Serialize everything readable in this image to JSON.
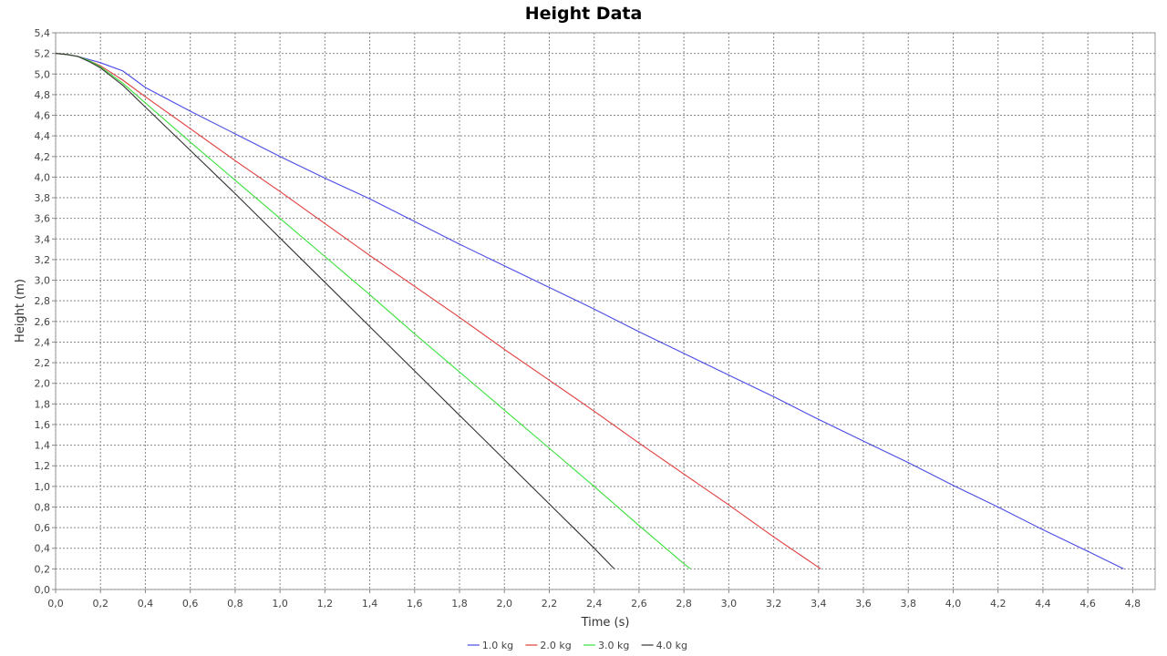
{
  "chart_data": {
    "type": "line",
    "title": "Height Data",
    "xlabel": "Time (s)",
    "ylabel": "Height (m)",
    "xlim": [
      0.0,
      4.9
    ],
    "ylim": [
      0.0,
      5.4
    ],
    "x_ticks": [
      "0,0",
      "0,2",
      "0,4",
      "0,6",
      "0,8",
      "1,0",
      "1,2",
      "1,4",
      "1,6",
      "1,8",
      "2,0",
      "2,2",
      "2,4",
      "2,6",
      "2,8",
      "3,0",
      "3,2",
      "3,4",
      "3,6",
      "3,8",
      "4,0",
      "4,2",
      "4,4",
      "4,6",
      "4,8"
    ],
    "y_ticks": [
      "0,0",
      "0,2",
      "0,4",
      "0,6",
      "0,8",
      "1,0",
      "1,2",
      "1,4",
      "1,6",
      "1,8",
      "2,0",
      "2,2",
      "2,4",
      "2,6",
      "2,8",
      "3,0",
      "3,2",
      "3,4",
      "3,6",
      "3,8",
      "4,0",
      "4,2",
      "4,4",
      "4,6",
      "4,8",
      "5,0",
      "5,2",
      "5,4"
    ],
    "grid": true,
    "legend_position": "bottom",
    "series": [
      {
        "name": "1.0 kg",
        "color": "#4a4ae6",
        "points": [
          [
            0.0,
            5.2
          ],
          [
            0.05,
            5.19
          ],
          [
            0.1,
            5.17
          ],
          [
            0.15,
            5.14
          ],
          [
            0.2,
            5.11
          ],
          [
            0.3,
            5.03
          ],
          [
            0.4,
            4.87
          ],
          [
            0.6,
            4.64
          ],
          [
            0.8,
            4.42
          ],
          [
            1.0,
            4.2
          ],
          [
            1.2,
            3.99
          ],
          [
            1.4,
            3.79
          ],
          [
            1.6,
            3.57
          ],
          [
            1.8,
            3.35
          ],
          [
            2.0,
            3.14
          ],
          [
            2.2,
            2.93
          ],
          [
            2.4,
            2.72
          ],
          [
            2.6,
            2.5
          ],
          [
            2.8,
            2.29
          ],
          [
            3.0,
            2.08
          ],
          [
            3.2,
            1.87
          ],
          [
            3.4,
            1.65
          ],
          [
            3.6,
            1.44
          ],
          [
            3.8,
            1.23
          ],
          [
            4.0,
            1.01
          ],
          [
            4.2,
            0.8
          ],
          [
            4.4,
            0.58
          ],
          [
            4.6,
            0.37
          ],
          [
            4.76,
            0.2
          ]
        ]
      },
      {
        "name": "2.0 kg",
        "color": "#e03c3c",
        "points": [
          [
            0.0,
            5.2
          ],
          [
            0.05,
            5.19
          ],
          [
            0.1,
            5.17
          ],
          [
            0.15,
            5.13
          ],
          [
            0.2,
            5.08
          ],
          [
            0.3,
            4.94
          ],
          [
            0.4,
            4.78
          ],
          [
            0.6,
            4.47
          ],
          [
            0.8,
            4.16
          ],
          [
            1.0,
            3.86
          ],
          [
            1.2,
            3.55
          ],
          [
            1.4,
            3.24
          ],
          [
            1.6,
            2.94
          ],
          [
            1.8,
            2.64
          ],
          [
            2.0,
            2.33
          ],
          [
            2.2,
            2.03
          ],
          [
            2.4,
            1.73
          ],
          [
            2.6,
            1.42
          ],
          [
            2.8,
            1.12
          ],
          [
            3.0,
            0.82
          ],
          [
            3.2,
            0.51
          ],
          [
            3.41,
            0.2
          ]
        ]
      },
      {
        "name": "3.0 kg",
        "color": "#3ce03c",
        "points": [
          [
            0.0,
            5.2
          ],
          [
            0.05,
            5.19
          ],
          [
            0.1,
            5.17
          ],
          [
            0.15,
            5.13
          ],
          [
            0.2,
            5.07
          ],
          [
            0.3,
            4.91
          ],
          [
            0.4,
            4.72
          ],
          [
            0.6,
            4.34
          ],
          [
            0.8,
            3.97
          ],
          [
            1.0,
            3.6
          ],
          [
            1.2,
            3.23
          ],
          [
            1.4,
            2.86
          ],
          [
            1.6,
            2.48
          ],
          [
            1.8,
            2.11
          ],
          [
            2.0,
            1.74
          ],
          [
            2.2,
            1.37
          ],
          [
            2.4,
            1.0
          ],
          [
            2.6,
            0.62
          ],
          [
            2.8,
            0.25
          ],
          [
            2.83,
            0.2
          ]
        ]
      },
      {
        "name": "4.0 kg",
        "color": "#333333",
        "points": [
          [
            0.0,
            5.2
          ],
          [
            0.05,
            5.19
          ],
          [
            0.1,
            5.17
          ],
          [
            0.15,
            5.12
          ],
          [
            0.2,
            5.06
          ],
          [
            0.3,
            4.89
          ],
          [
            0.4,
            4.68
          ],
          [
            0.6,
            4.26
          ],
          [
            0.8,
            3.84
          ],
          [
            1.0,
            3.41
          ],
          [
            1.2,
            2.98
          ],
          [
            1.4,
            2.55
          ],
          [
            1.6,
            2.12
          ],
          [
            1.8,
            1.69
          ],
          [
            2.0,
            1.26
          ],
          [
            2.2,
            0.83
          ],
          [
            2.4,
            0.4
          ],
          [
            2.49,
            0.2
          ]
        ]
      }
    ]
  }
}
